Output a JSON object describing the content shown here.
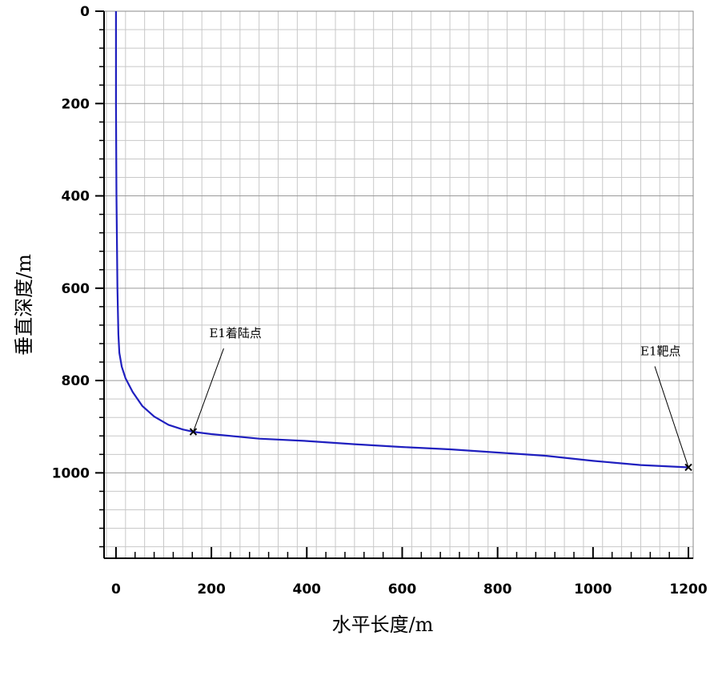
{
  "chart_data": {
    "type": "line",
    "xlabel": "水平长度/m",
    "ylabel": "垂直深度/m",
    "xlim": [
      -25,
      1210
    ],
    "ylim": [
      0,
      1185
    ],
    "y_inverted": true,
    "x_ticks": [
      0,
      200,
      400,
      600,
      800,
      1000,
      1200
    ],
    "y_ticks": [
      0,
      200,
      400,
      600,
      800,
      1000
    ],
    "x_tick_labels": [
      "0",
      "200",
      "400",
      "600",
      "800",
      "1000",
      "1200"
    ],
    "y_tick_labels": [
      "0",
      "200",
      "400",
      "600",
      "800",
      "1000"
    ],
    "grid": true,
    "line_color": "#1f1fbf",
    "grid_color": "#c8c8c8",
    "series": [
      {
        "points": [
          [
            0,
            0
          ],
          [
            0,
            200
          ],
          [
            1,
            400
          ],
          [
            2,
            500
          ],
          [
            3,
            600
          ],
          [
            4,
            650
          ],
          [
            5,
            700
          ],
          [
            7,
            740
          ],
          [
            12,
            770
          ],
          [
            20,
            795
          ],
          [
            35,
            825
          ],
          [
            55,
            855
          ],
          [
            80,
            878
          ],
          [
            110,
            896
          ],
          [
            140,
            906
          ],
          [
            162,
            911
          ],
          [
            200,
            916
          ],
          [
            300,
            926
          ],
          [
            400,
            931
          ],
          [
            500,
            938
          ],
          [
            600,
            944
          ],
          [
            700,
            949
          ],
          [
            800,
            956
          ],
          [
            900,
            963
          ],
          [
            1000,
            974
          ],
          [
            1100,
            983
          ],
          [
            1200,
            988
          ]
        ]
      }
    ],
    "annotations": [
      {
        "text": "E1着陆点",
        "point": [
          162,
          911
        ]
      },
      {
        "text": "E1靶点",
        "point": [
          1200,
          988
        ]
      }
    ]
  }
}
